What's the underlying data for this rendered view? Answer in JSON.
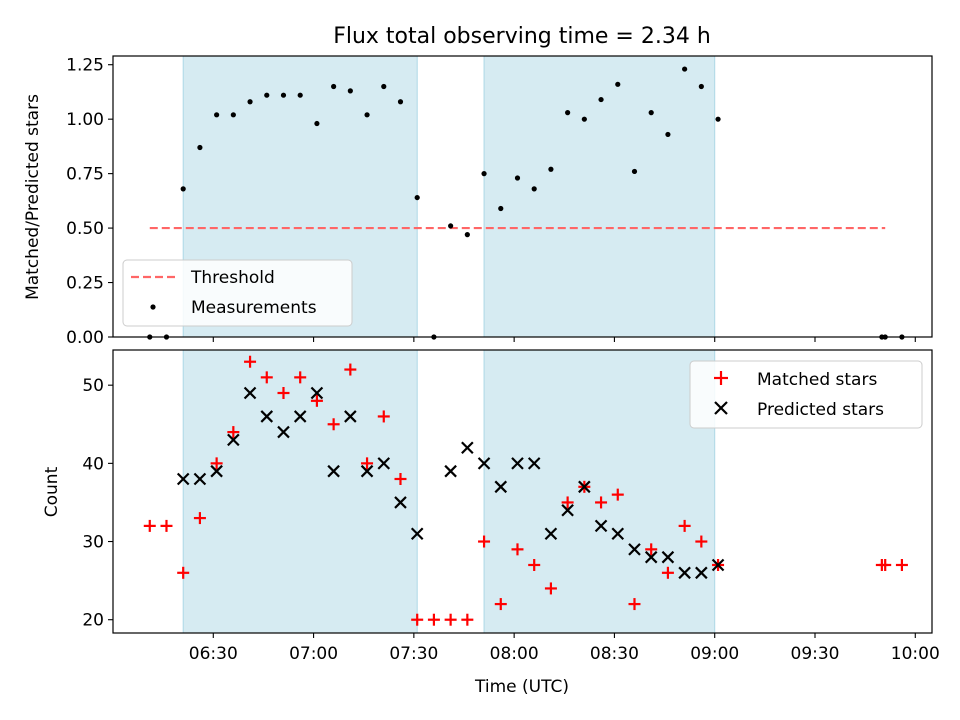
{
  "title": "Flux total observing time = 2.34 h",
  "colors": {
    "band": "#add8e6",
    "threshold": "#ff6666",
    "measurement": "#000000",
    "matched": "#ff0000",
    "predicted": "#000000"
  },
  "chart_data": [
    {
      "type": "scatter",
      "ylabel": "Matched/Predicted stars",
      "ylim": [
        0,
        1.29
      ],
      "yticks": [
        "0.00",
        "0.25",
        "0.50",
        "0.75",
        "1.00",
        "1.25"
      ],
      "ytick_values": [
        0,
        0.25,
        0.5,
        0.75,
        1.0,
        1.25
      ],
      "xlim": [
        "06:00",
        "10:05"
      ],
      "xticks": [
        "06:30",
        "07:00",
        "07:30",
        "08:00",
        "08:30",
        "09:00",
        "09:30",
        "10:00"
      ],
      "legend": {
        "placement": "lower-left",
        "entries": [
          "Threshold",
          "Measurements"
        ]
      },
      "shaded_intervals": [
        [
          "06:21",
          "07:31"
        ],
        [
          "07:51",
          "09:00"
        ]
      ],
      "threshold": {
        "name": "Threshold",
        "value": 0.5,
        "x": [
          "06:11",
          "09:51"
        ]
      },
      "series": [
        {
          "name": "Measurements",
          "x": [
            "06:11",
            "06:16",
            "06:21",
            "06:26",
            "06:31",
            "06:36",
            "06:41",
            "06:46",
            "06:51",
            "06:56",
            "07:01",
            "07:06",
            "07:11",
            "07:16",
            "07:21",
            "07:26",
            "07:31",
            "07:36",
            "07:41",
            "07:46",
            "07:51",
            "07:56",
            "08:01",
            "08:06",
            "08:11",
            "08:16",
            "08:21",
            "08:26",
            "08:31",
            "08:36",
            "08:41",
            "08:46",
            "08:51",
            "08:56",
            "09:01",
            "09:50",
            "09:51",
            "09:56"
          ],
          "y": [
            0.0,
            0.0,
            0.68,
            0.87,
            1.02,
            1.02,
            1.08,
            1.11,
            1.11,
            1.11,
            0.98,
            1.15,
            1.13,
            1.02,
            1.15,
            1.08,
            0.64,
            0.0,
            0.51,
            0.47,
            0.75,
            0.59,
            0.73,
            0.68,
            0.77,
            1.03,
            1.0,
            1.09,
            1.16,
            0.76,
            1.03,
            0.93,
            1.23,
            1.15,
            1.0,
            0.0,
            0.0,
            0.0
          ]
        }
      ]
    },
    {
      "type": "scatter",
      "xlabel": "Time (UTC)",
      "ylabel": "Count",
      "ylim": [
        18.3,
        54.5
      ],
      "yticks": [
        "20",
        "30",
        "40",
        "50"
      ],
      "ytick_values": [
        20,
        30,
        40,
        50
      ],
      "xlim": [
        "06:00",
        "10:05"
      ],
      "xticks": [
        "06:30",
        "07:00",
        "07:30",
        "08:00",
        "08:30",
        "09:00",
        "09:30",
        "10:00"
      ],
      "legend": {
        "placement": "top-right",
        "entries": [
          "Matched stars",
          "Predicted stars"
        ]
      },
      "shaded_intervals": [
        [
          "06:21",
          "07:31"
        ],
        [
          "07:51",
          "09:00"
        ]
      ],
      "series": [
        {
          "name": "Matched stars",
          "x": [
            "06:11",
            "06:16",
            "06:21",
            "06:26",
            "06:31",
            "06:36",
            "06:41",
            "06:46",
            "06:51",
            "06:56",
            "07:01",
            "07:06",
            "07:11",
            "07:16",
            "07:21",
            "07:26",
            "07:31",
            "07:36",
            "07:41",
            "07:46",
            "07:51",
            "07:56",
            "08:01",
            "08:06",
            "08:11",
            "08:16",
            "08:21",
            "08:26",
            "08:31",
            "08:36",
            "08:41",
            "08:46",
            "08:51",
            "08:56",
            "09:01",
            "09:50",
            "09:51",
            "09:56"
          ],
          "y": [
            32,
            32,
            26,
            33,
            40,
            44,
            53,
            51,
            49,
            51,
            48,
            45,
            52,
            40,
            46,
            38,
            20,
            20,
            20,
            20,
            30,
            22,
            29,
            27,
            24,
            35,
            37,
            35,
            36,
            22,
            29,
            26,
            32,
            30,
            27,
            27,
            27,
            27
          ]
        },
        {
          "name": "Predicted stars",
          "x": [
            "06:21",
            "06:26",
            "06:31",
            "06:36",
            "06:41",
            "06:46",
            "06:51",
            "06:56",
            "07:01",
            "07:06",
            "07:11",
            "07:16",
            "07:21",
            "07:26",
            "07:31",
            "07:41",
            "07:46",
            "07:51",
            "07:56",
            "08:01",
            "08:06",
            "08:11",
            "08:16",
            "08:21",
            "08:26",
            "08:31",
            "08:36",
            "08:41",
            "08:46",
            "08:51",
            "08:56",
            "09:01"
          ],
          "y": [
            38,
            38,
            39,
            43,
            49,
            46,
            44,
            46,
            49,
            39,
            46,
            39,
            40,
            35,
            31,
            39,
            42,
            40,
            37,
            40,
            40,
            31,
            34,
            37,
            32,
            31,
            29,
            28,
            28,
            26,
            26,
            27
          ]
        }
      ]
    }
  ]
}
